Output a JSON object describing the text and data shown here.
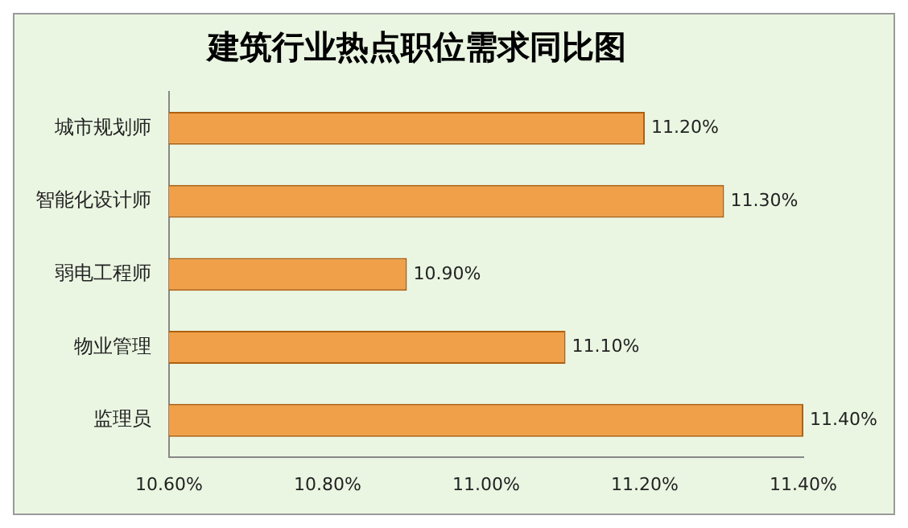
{
  "chart_data": {
    "type": "bar",
    "orientation": "horizontal",
    "title": "建筑行业热点职位需求同比图",
    "categories": [
      "城市规划师",
      "智能化设计师",
      "弱电工程师",
      "物业管理",
      "监理员"
    ],
    "values": [
      11.2,
      11.3,
      10.9,
      11.1,
      11.4
    ],
    "value_labels": [
      "11.20%",
      "11.30%",
      "10.90%",
      "11.10%",
      "11.40%"
    ],
    "color": "#f0a048",
    "xlim": [
      10.6,
      11.4
    ],
    "xticks": [
      {
        "value": 10.6,
        "label": "10.60%"
      },
      {
        "value": 10.8,
        "label": "10.80%"
      },
      {
        "value": 11.0,
        "label": "11.00%"
      },
      {
        "value": 11.2,
        "label": "11.20%"
      },
      {
        "value": 11.4,
        "label": "11.40%"
      }
    ],
    "grid": false,
    "legend": false
  }
}
